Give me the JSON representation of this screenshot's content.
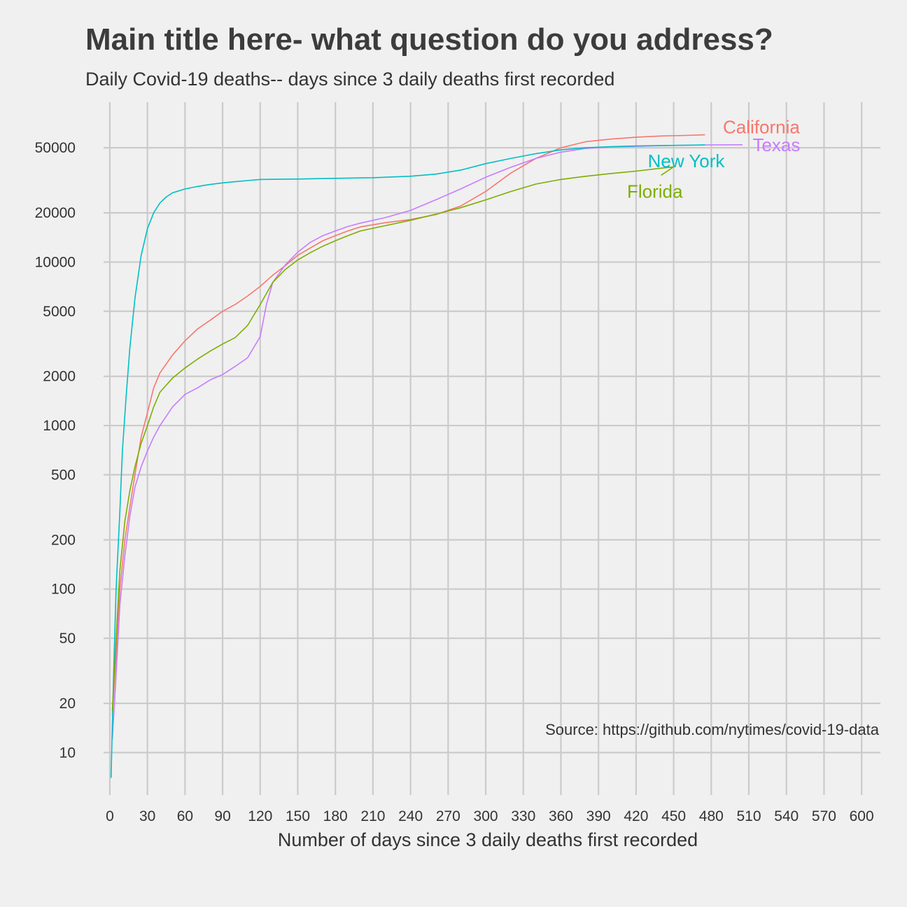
{
  "chart": {
    "title": "Main title here- what question do you address?",
    "subtitle": "Daily Covid-19 deaths-- days since 3 daily deaths first recorded",
    "caption": "Source: https://github.com/nytimes/covid-19-data"
  },
  "chart_data": {
    "type": "line",
    "title": "Main title here- what question do you address?",
    "subtitle": "Daily Covid-19 deaths-- days since 3 daily deaths first recorded",
    "xlabel": "Number of days since 3 daily deaths first recorded",
    "ylabel": "",
    "y_scale": "log10",
    "xlim": [
      -5,
      615
    ],
    "ylim": [
      5.5,
      95000
    ],
    "x_ticks": [
      0,
      30,
      60,
      90,
      120,
      150,
      180,
      210,
      240,
      270,
      300,
      330,
      360,
      390,
      420,
      450,
      480,
      510,
      540,
      570,
      600
    ],
    "y_ticks": [
      10,
      20,
      50,
      100,
      200,
      500,
      1000,
      2000,
      5000,
      10000,
      20000,
      50000
    ],
    "grid": true,
    "legend": "none (direct labels at line ends)",
    "series": [
      {
        "name": "California",
        "color": "#F8766D",
        "points": [
          [
            2,
            17
          ],
          [
            5,
            40
          ],
          [
            8,
            100
          ],
          [
            12,
            200
          ],
          [
            16,
            320
          ],
          [
            20,
            500
          ],
          [
            25,
            850
          ],
          [
            30,
            1200
          ],
          [
            35,
            1700
          ],
          [
            40,
            2100
          ],
          [
            50,
            2700
          ],
          [
            60,
            3300
          ],
          [
            70,
            3900
          ],
          [
            80,
            4400
          ],
          [
            90,
            5000
          ],
          [
            100,
            5500
          ],
          [
            110,
            6200
          ],
          [
            120,
            7100
          ],
          [
            130,
            8300
          ],
          [
            140,
            9500
          ],
          [
            150,
            11000
          ],
          [
            160,
            12200
          ],
          [
            170,
            13500
          ],
          [
            180,
            14500
          ],
          [
            190,
            15500
          ],
          [
            200,
            16400
          ],
          [
            220,
            17400
          ],
          [
            240,
            18200
          ],
          [
            260,
            19500
          ],
          [
            280,
            22000
          ],
          [
            300,
            27000
          ],
          [
            320,
            35000
          ],
          [
            340,
            43000
          ],
          [
            360,
            50000
          ],
          [
            380,
            54500
          ],
          [
            400,
            56500
          ],
          [
            420,
            58000
          ],
          [
            440,
            59000
          ],
          [
            460,
            59500
          ],
          [
            475,
            60000
          ]
        ]
      },
      {
        "name": "Texas",
        "color": "#C77CFF",
        "points": [
          [
            2,
            12
          ],
          [
            5,
            30
          ],
          [
            8,
            80
          ],
          [
            12,
            160
          ],
          [
            16,
            280
          ],
          [
            20,
            420
          ],
          [
            25,
            560
          ],
          [
            30,
            700
          ],
          [
            35,
            850
          ],
          [
            40,
            1000
          ],
          [
            50,
            1300
          ],
          [
            60,
            1550
          ],
          [
            70,
            1700
          ],
          [
            80,
            1900
          ],
          [
            90,
            2050
          ],
          [
            100,
            2300
          ],
          [
            110,
            2600
          ],
          [
            120,
            3500
          ],
          [
            125,
            5500
          ],
          [
            130,
            7500
          ],
          [
            140,
            9600
          ],
          [
            150,
            11500
          ],
          [
            160,
            13200
          ],
          [
            170,
            14500
          ],
          [
            180,
            15500
          ],
          [
            190,
            16500
          ],
          [
            200,
            17300
          ],
          [
            220,
            18700
          ],
          [
            240,
            20700
          ],
          [
            260,
            24000
          ],
          [
            280,
            28000
          ],
          [
            300,
            33000
          ],
          [
            320,
            38000
          ],
          [
            340,
            43000
          ],
          [
            360,
            47000
          ],
          [
            380,
            49500
          ],
          [
            400,
            50500
          ],
          [
            420,
            51000
          ],
          [
            440,
            51500
          ],
          [
            460,
            51800
          ],
          [
            480,
            52000
          ],
          [
            505,
            52200
          ]
        ]
      },
      {
        "name": "New York",
        "color": "#00BFC4",
        "points": [
          [
            1,
            7
          ],
          [
            3,
            30
          ],
          [
            5,
            100
          ],
          [
            8,
            300
          ],
          [
            10,
            700
          ],
          [
            13,
            1500
          ],
          [
            16,
            3000
          ],
          [
            20,
            6000
          ],
          [
            25,
            11000
          ],
          [
            30,
            16000
          ],
          [
            35,
            20000
          ],
          [
            40,
            23000
          ],
          [
            45,
            25000
          ],
          [
            50,
            26500
          ],
          [
            60,
            28000
          ],
          [
            70,
            29000
          ],
          [
            80,
            29800
          ],
          [
            90,
            30500
          ],
          [
            100,
            31000
          ],
          [
            110,
            31500
          ],
          [
            120,
            32000
          ],
          [
            150,
            32200
          ],
          [
            180,
            32500
          ],
          [
            210,
            32800
          ],
          [
            240,
            33500
          ],
          [
            260,
            34500
          ],
          [
            280,
            36500
          ],
          [
            300,
            40000
          ],
          [
            320,
            43000
          ],
          [
            340,
            46000
          ],
          [
            360,
            48500
          ],
          [
            380,
            50000
          ],
          [
            400,
            50800
          ],
          [
            420,
            51300
          ],
          [
            440,
            51600
          ],
          [
            460,
            51800
          ],
          [
            475,
            52000
          ]
        ]
      },
      {
        "name": "Florida",
        "color": "#7CAE00",
        "points": [
          [
            2,
            18
          ],
          [
            5,
            50
          ],
          [
            8,
            130
          ],
          [
            12,
            260
          ],
          [
            16,
            400
          ],
          [
            20,
            560
          ],
          [
            25,
            780
          ],
          [
            30,
            1000
          ],
          [
            35,
            1300
          ],
          [
            40,
            1600
          ],
          [
            50,
            1950
          ],
          [
            60,
            2250
          ],
          [
            70,
            2550
          ],
          [
            80,
            2850
          ],
          [
            90,
            3150
          ],
          [
            100,
            3450
          ],
          [
            110,
            4100
          ],
          [
            120,
            5500
          ],
          [
            130,
            7500
          ],
          [
            140,
            9000
          ],
          [
            150,
            10300
          ],
          [
            160,
            11400
          ],
          [
            170,
            12500
          ],
          [
            180,
            13500
          ],
          [
            190,
            14500
          ],
          [
            200,
            15500
          ],
          [
            220,
            16700
          ],
          [
            240,
            18000
          ],
          [
            260,
            19600
          ],
          [
            280,
            21500
          ],
          [
            300,
            24000
          ],
          [
            320,
            27000
          ],
          [
            340,
            30000
          ],
          [
            360,
            32000
          ],
          [
            380,
            33500
          ],
          [
            400,
            34800
          ],
          [
            420,
            36000
          ],
          [
            440,
            37500
          ],
          [
            450,
            38200
          ],
          [
            445,
            36000
          ],
          [
            440,
            34000
          ]
        ]
      }
    ],
    "annotations": [
      {
        "text": "California",
        "x": 520,
        "y": 67000,
        "color": "#F8766D"
      },
      {
        "text": "Texas",
        "x": 532,
        "y": 52200,
        "color": "#C77CFF"
      },
      {
        "text": "New York",
        "x": 460,
        "y": 41500,
        "color": "#00BFC4"
      },
      {
        "text": "Florida",
        "x": 435,
        "y": 27000,
        "color": "#7CAE00"
      }
    ]
  }
}
